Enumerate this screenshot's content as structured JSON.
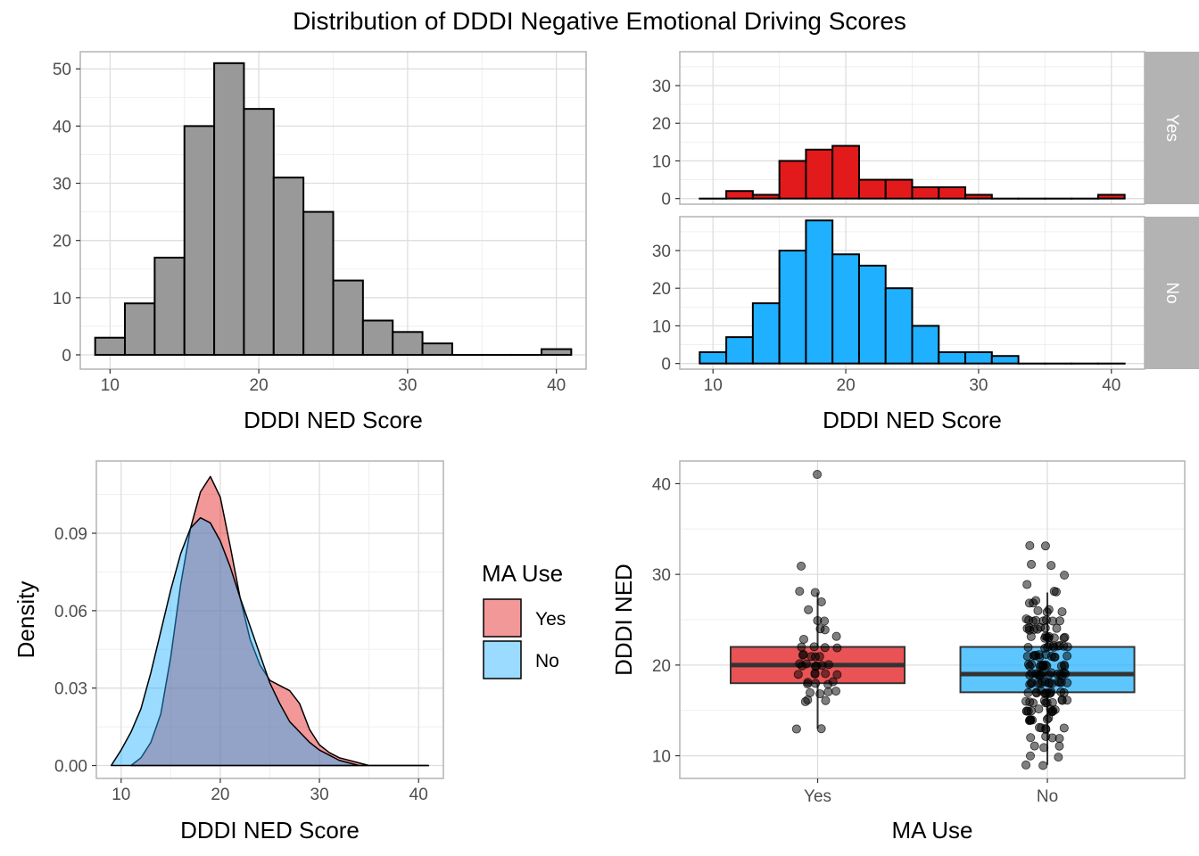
{
  "title": "Distribution of DDDI Negative Emotional Driving Scores",
  "colors": {
    "yes": "#e31a1c",
    "no": "#1fb0ff",
    "overall": "#999999",
    "strip": "#b3b3b3"
  },
  "chart_data": [
    {
      "type": "bar",
      "id": "overall-histogram",
      "xlabel": "DDDI NED Score",
      "ylabel": "",
      "xlim": [
        8,
        42
      ],
      "ylim": [
        -2.5,
        53
      ],
      "xticks": [
        10,
        20,
        30,
        40
      ],
      "yticks": [
        0,
        10,
        20,
        30,
        40,
        50
      ],
      "bin_width": 2,
      "bin_centers": [
        10,
        12,
        14,
        16,
        18,
        20,
        22,
        24,
        26,
        28,
        30,
        32,
        34,
        36,
        38,
        40
      ],
      "values": [
        3,
        9,
        17,
        40,
        51,
        43,
        31,
        25,
        13,
        6,
        4,
        2,
        0,
        0,
        0,
        1
      ]
    },
    {
      "type": "bar",
      "id": "faceted-histogram",
      "xlabel": "DDDI NED Score",
      "ylabel": "",
      "xlim": [
        7.5,
        42.5
      ],
      "ylim": [
        -1.5,
        39
      ],
      "xticks": [
        10,
        20,
        30,
        40
      ],
      "yticks": [
        0,
        10,
        20,
        30
      ],
      "bin_width": 2,
      "bin_centers": [
        10,
        12,
        14,
        16,
        18,
        20,
        22,
        24,
        26,
        28,
        30,
        32,
        34,
        36,
        38,
        40
      ],
      "series": [
        {
          "name": "Yes",
          "values": [
            0,
            2,
            1,
            10,
            13,
            14,
            5,
            5,
            3,
            3,
            1,
            0,
            0,
            0,
            0,
            1
          ]
        },
        {
          "name": "No",
          "values": [
            3,
            7,
            16,
            30,
            38,
            29,
            26,
            20,
            10,
            3,
            3,
            2,
            0,
            0,
            0,
            0
          ]
        }
      ]
    },
    {
      "type": "area",
      "id": "density-plot",
      "xlabel": "DDDI NED Score",
      "ylabel": "Density",
      "xlim": [
        7.5,
        42.5
      ],
      "ylim": [
        -0.005,
        0.118
      ],
      "xticks": [
        10,
        20,
        30,
        40
      ],
      "yticks": [
        0.0,
        0.03,
        0.06,
        0.09
      ],
      "ytick_labels": [
        "0.00",
        "0.03",
        "0.06",
        "0.09"
      ],
      "legend": {
        "title": "MA Use",
        "position": "right",
        "entries": [
          "Yes",
          "No"
        ]
      },
      "series": [
        {
          "name": "Yes",
          "x": [
            11,
            12,
            13,
            14,
            15,
            16,
            17,
            18,
            19,
            20,
            21,
            22,
            23,
            24,
            25,
            26,
            27,
            28,
            29,
            30,
            31,
            32,
            33,
            34,
            35,
            36,
            37,
            38,
            39,
            40,
            41
          ],
          "y": [
            0.0,
            0.003,
            0.009,
            0.02,
            0.042,
            0.07,
            0.092,
            0.106,
            0.112,
            0.104,
            0.085,
            0.065,
            0.049,
            0.039,
            0.033,
            0.031,
            0.029,
            0.024,
            0.014,
            0.008,
            0.005,
            0.003,
            0.002,
            0.001,
            0.0,
            0.0,
            0.0,
            0.0,
            0.0,
            0.0,
            0.0
          ]
        },
        {
          "name": "No",
          "x": [
            9,
            10,
            11,
            12,
            13,
            14,
            15,
            16,
            17,
            18,
            19,
            20,
            21,
            22,
            23,
            24,
            25,
            26,
            27,
            28,
            29,
            30,
            31,
            32,
            33,
            34,
            35,
            36,
            37,
            38,
            39,
            40,
            41
          ],
          "y": [
            0.0,
            0.006,
            0.013,
            0.022,
            0.036,
            0.052,
            0.068,
            0.082,
            0.092,
            0.096,
            0.094,
            0.087,
            0.077,
            0.065,
            0.054,
            0.043,
            0.032,
            0.024,
            0.017,
            0.013,
            0.009,
            0.006,
            0.004,
            0.002,
            0.001,
            0.0,
            0.0,
            0.0,
            0.0,
            0.0,
            0.0,
            0.0,
            0.0
          ]
        }
      ]
    },
    {
      "type": "box",
      "id": "boxplot",
      "xlabel": "MA Use",
      "ylabel": "DDDI NED",
      "categories": [
        "Yes",
        "No"
      ],
      "ylim": [
        7.5,
        42.5
      ],
      "yticks": [
        10,
        20,
        30,
        40
      ],
      "boxes": [
        {
          "name": "Yes",
          "q1": 18,
          "median": 20,
          "q3": 22,
          "whisker_low": 13,
          "whisker_high": 28,
          "outliers": [
            31,
            41
          ]
        },
        {
          "name": "No",
          "q1": 17,
          "median": 19,
          "q3": 22,
          "whisker_low": 9,
          "whisker_high": 28,
          "outliers": [
            29,
            30,
            31,
            32,
            33
          ]
        }
      ],
      "points": [
        {
          "group": "Yes",
          "values": [
            41,
            31,
            28,
            28,
            27,
            26,
            25,
            25,
            24,
            24,
            23,
            23,
            22,
            22,
            22,
            22,
            21,
            21,
            21,
            21,
            21,
            20,
            20,
            20,
            20,
            20,
            20,
            20,
            19,
            19,
            19,
            19,
            19,
            18,
            18,
            18,
            18,
            18,
            17,
            17,
            17,
            17,
            16,
            16,
            16,
            13,
            13
          ]
        },
        {
          "group": "No",
          "values": [
            33,
            33,
            31,
            31,
            30,
            29,
            28,
            28,
            27,
            27,
            27,
            26,
            26,
            26,
            26,
            25,
            25,
            25,
            25,
            25,
            25,
            25,
            25,
            24,
            24,
            24,
            24,
            24,
            24,
            24,
            24,
            23,
            23,
            23,
            23,
            23,
            23,
            23,
            23,
            23,
            22,
            22,
            22,
            22,
            22,
            22,
            22,
            22,
            22,
            22,
            21,
            21,
            21,
            21,
            21,
            21,
            21,
            21,
            21,
            21,
            21,
            20,
            20,
            20,
            20,
            20,
            20,
            20,
            20,
            20,
            20,
            20,
            20,
            20,
            19,
            19,
            19,
            19,
            19,
            19,
            19,
            19,
            19,
            19,
            19,
            19,
            19,
            19,
            18,
            18,
            18,
            18,
            18,
            18,
            18,
            18,
            18,
            18,
            18,
            18,
            18,
            18,
            17,
            17,
            17,
            17,
            17,
            17,
            17,
            17,
            17,
            17,
            17,
            17,
            16,
            16,
            16,
            16,
            16,
            16,
            16,
            16,
            16,
            16,
            15,
            15,
            15,
            15,
            15,
            15,
            15,
            15,
            15,
            15,
            14,
            14,
            14,
            14,
            14,
            14,
            14,
            13,
            13,
            13,
            13,
            13,
            12,
            12,
            12,
            12,
            11,
            11,
            11,
            10,
            10,
            9,
            9
          ]
        }
      ]
    }
  ]
}
